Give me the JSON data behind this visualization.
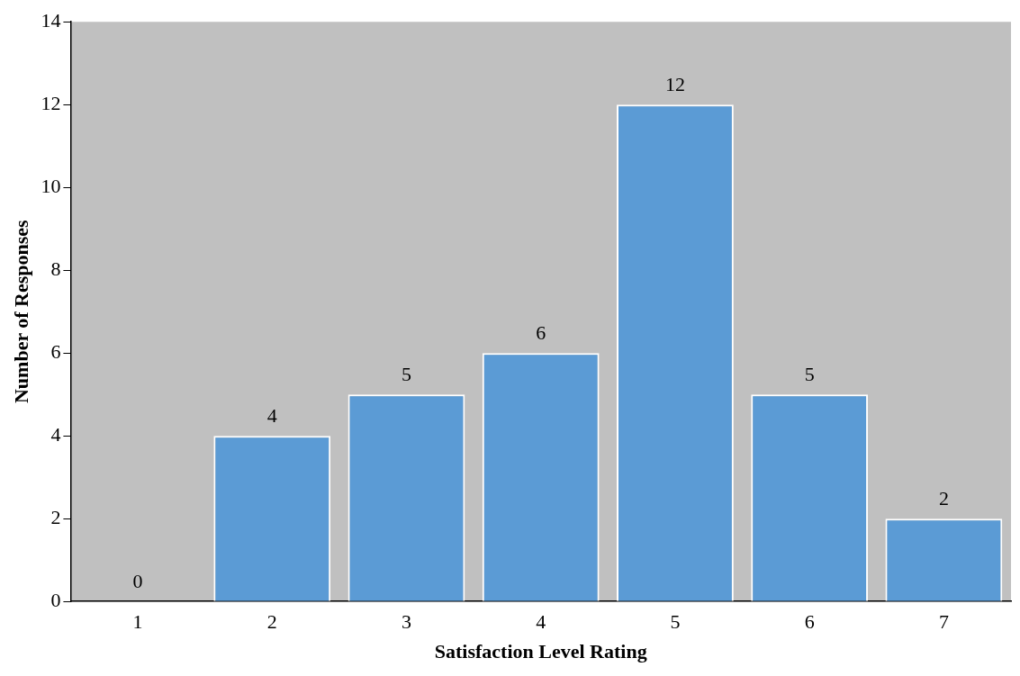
{
  "chart_data": {
    "type": "bar",
    "xlabel": "Satisfaction Level Rating",
    "ylabel": "Number of Responses",
    "categories": [
      "1",
      "2",
      "3",
      "4",
      "5",
      "6",
      "7"
    ],
    "values": [
      0,
      4,
      5,
      6,
      12,
      5,
      2
    ],
    "color": "#5b9bd5",
    "ylim": [
      0,
      14
    ],
    "yticks": [
      0,
      2,
      4,
      6,
      8,
      10,
      12,
      14
    ],
    "grid": false,
    "legend": false,
    "data_labels": true
  }
}
